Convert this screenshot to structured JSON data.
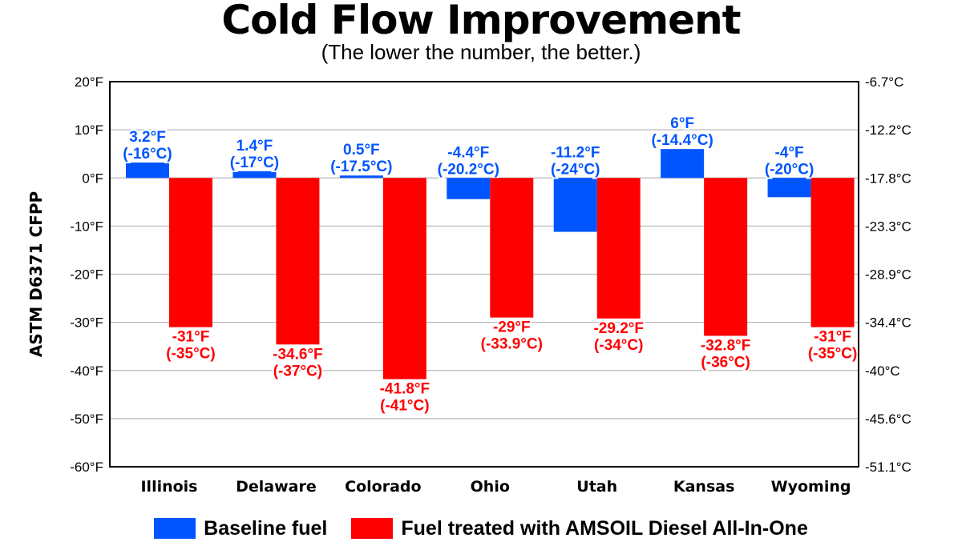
{
  "colors": {
    "baseline": "#0055ff",
    "treated": "#ff0000",
    "grid": "#b9b9b9",
    "axis": "#000000"
  },
  "chart_data": {
    "type": "bar",
    "title": "Cold Flow Improvement",
    "subtitle": "(The lower the number, the better.)",
    "ylabel": "ASTM D6371 CFPP",
    "ylim": [
      -60,
      20
    ],
    "yticks": [
      20,
      10,
      0,
      -10,
      -20,
      -30,
      -40,
      -50,
      -60
    ],
    "ytick_labels": [
      "20°F",
      "10°F",
      "0°F",
      "-10°F",
      "-20°F",
      "-30°F",
      "-40°F",
      "-50°F",
      "-60°F"
    ],
    "y2tick_labels": [
      "-6.7°C",
      "-12.2°C",
      "-17.8°C",
      "-23.3°C",
      "-28.9°C",
      "-34.4°C",
      "-40°C",
      "-45.6°C",
      "-51.1°C"
    ],
    "grid": true,
    "legend_position": "bottom",
    "categories": [
      "Illinois",
      "Delaware",
      "Colorado",
      "Ohio",
      "Utah",
      "Kansas",
      "Wyoming"
    ],
    "series": [
      {
        "name": "Baseline fuel",
        "values": [
          3.2,
          1.4,
          0.5,
          -4.4,
          -11.2,
          6,
          -4
        ],
        "labels_f": [
          "3.2°F",
          "1.4°F",
          "0.5°F",
          "-4.4°F",
          "-11.2°F",
          "6°F",
          "-4°F"
        ],
        "labels_c": [
          "(-16°C)",
          "(-17°C)",
          "(-17.5°C)",
          "(-20.2°C)",
          "(-24°C)",
          "(-14.4°C)",
          "(-20°C)"
        ]
      },
      {
        "name": "Fuel treated with AMSOIL Diesel All-In-One",
        "values": [
          -31,
          -34.6,
          -41.8,
          -29,
          -29.2,
          -32.8,
          -31
        ],
        "labels_f": [
          "-31°F",
          "-34.6°F",
          "-41.8°F",
          "-29°F",
          "-29.2°F",
          "-32.8°F",
          "-31°F"
        ],
        "labels_c": [
          "(-35°C)",
          "(-37°C)",
          "(-41°C)",
          "(-33.9°C)",
          "(-34°C)",
          "(-36°C)",
          "(-35°C)"
        ]
      }
    ]
  }
}
